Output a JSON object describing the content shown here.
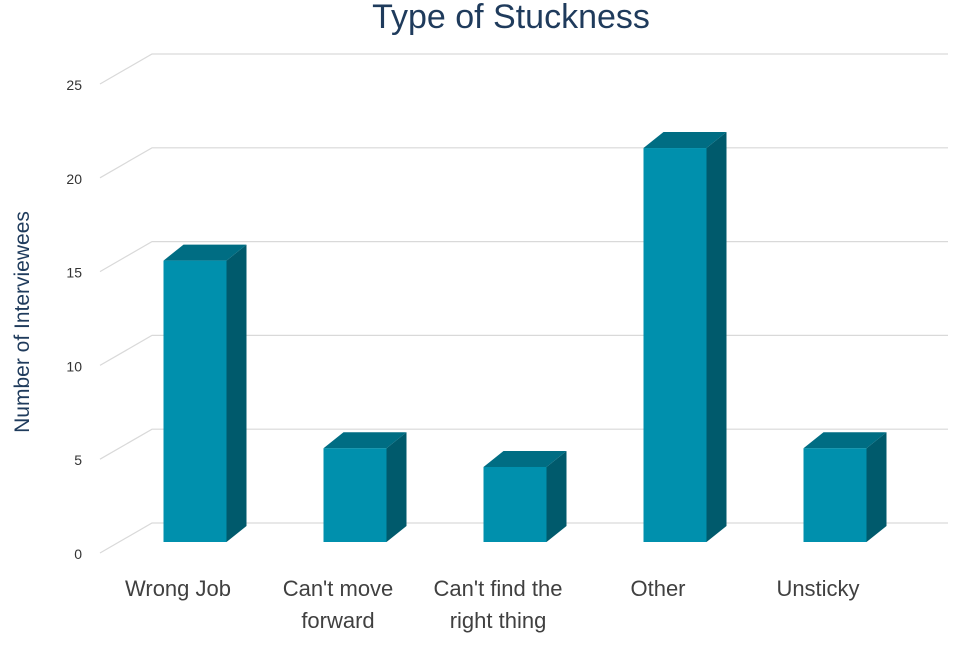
{
  "chart_data": {
    "type": "bar",
    "title": "Type of Stuckness",
    "xlabel": "",
    "ylabel": "Number of Interviewees",
    "categories": [
      [
        "Wrong Job"
      ],
      [
        "Can't move",
        "forward"
      ],
      [
        "Can't find the",
        "right thing"
      ],
      [
        "Other"
      ],
      [
        "Unsticky"
      ]
    ],
    "values": [
      15,
      5,
      4,
      21,
      5
    ],
    "ylim": [
      0,
      25
    ],
    "yticks": [
      0,
      5,
      10,
      15,
      20,
      25
    ],
    "grid": true,
    "legend": "none",
    "colors": {
      "front": "#0090ad",
      "top": "#006d83",
      "side": "#005a6c",
      "title": "#1f3b5c",
      "grid": "#d9d9d9"
    }
  }
}
